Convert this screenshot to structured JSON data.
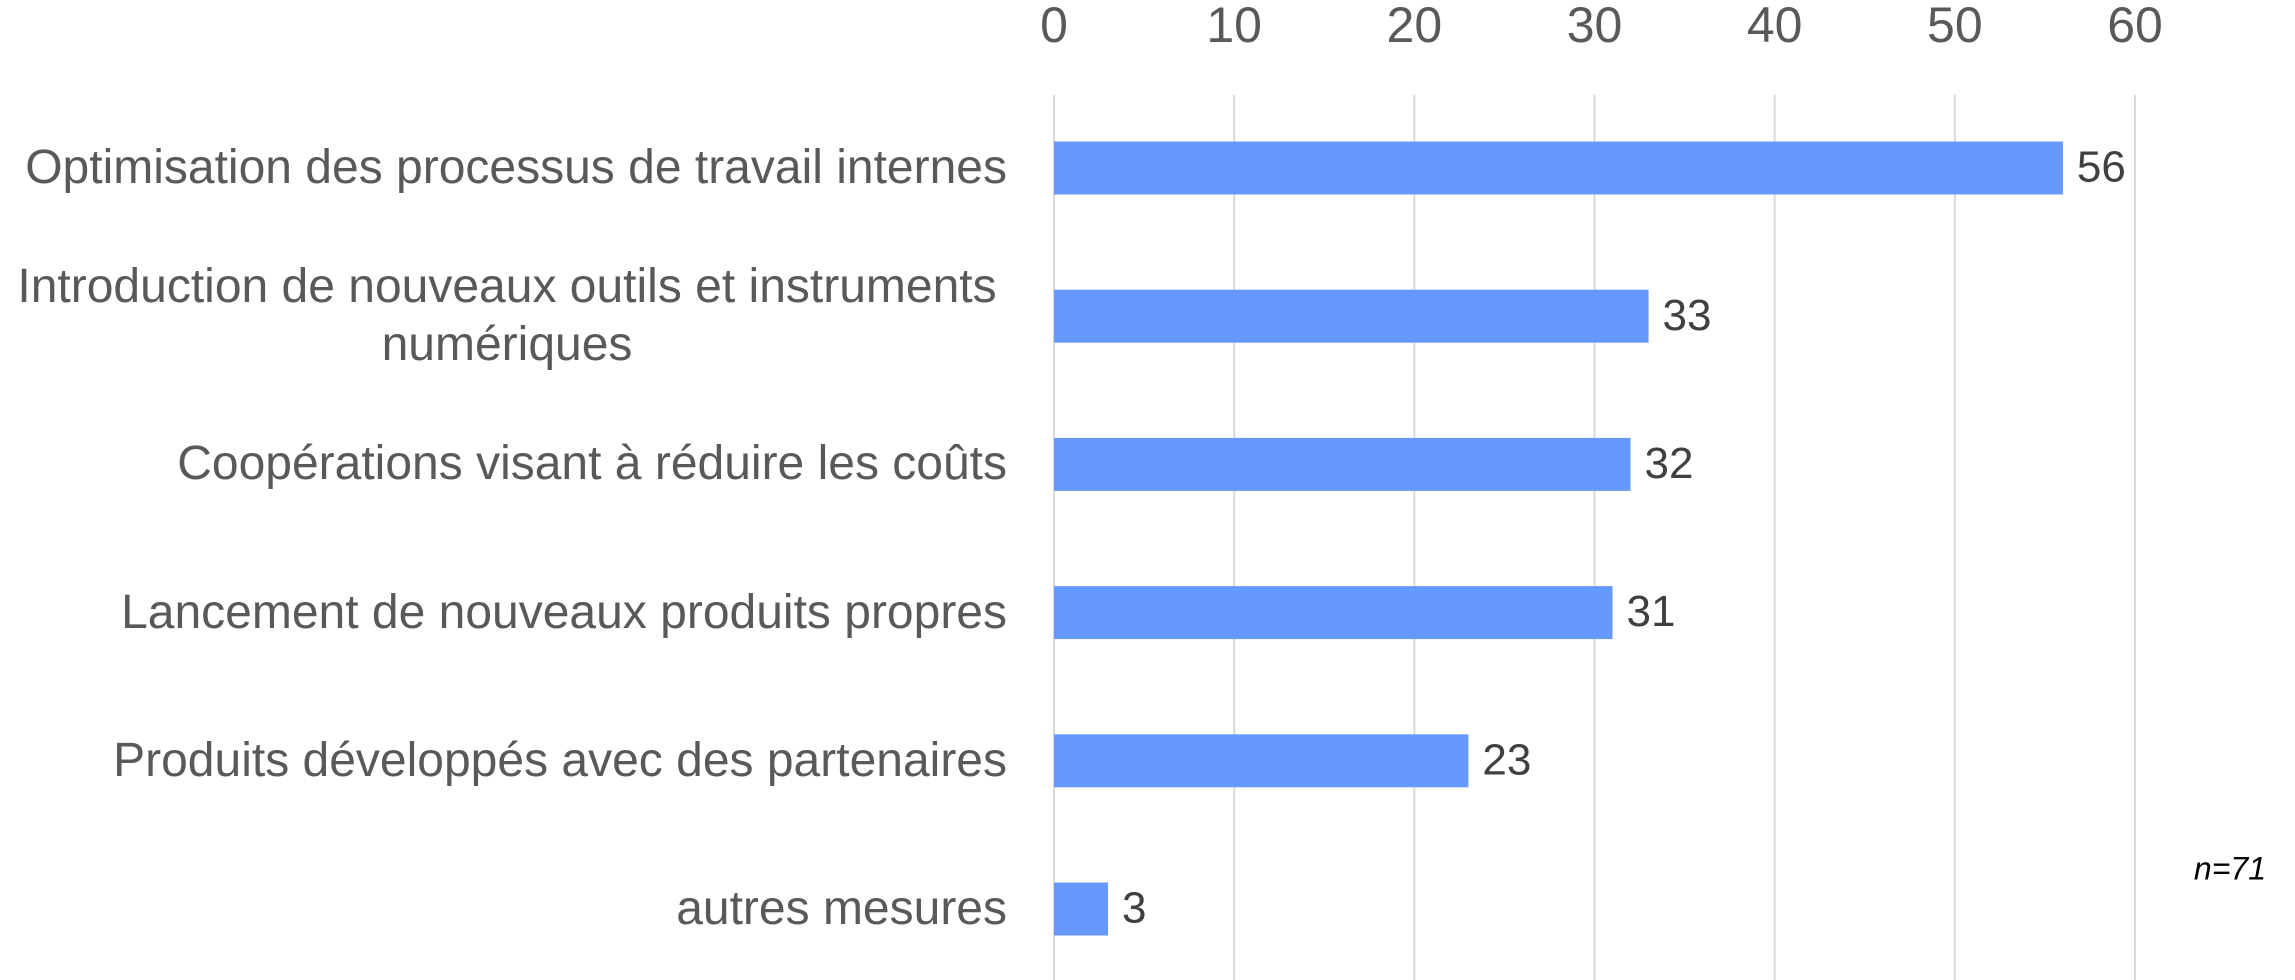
{
  "chart_data": {
    "type": "bar",
    "orientation": "horizontal",
    "categories": [
      "Optimisation des processus de travail internes",
      "Introduction de nouveaux outils et instruments numériques",
      "Coopérations visant à réduire les coûts",
      "Lancement de nouveaux produits propres",
      "Produits développés avec des partenaires",
      "autres mesures"
    ],
    "values": [
      56,
      33,
      32,
      31,
      23,
      3
    ],
    "color": "#6699ff",
    "xlim": [
      0,
      60
    ],
    "xticks": [
      0,
      10,
      20,
      30,
      40,
      50,
      60
    ],
    "grid": true,
    "annotation": "n=71"
  }
}
